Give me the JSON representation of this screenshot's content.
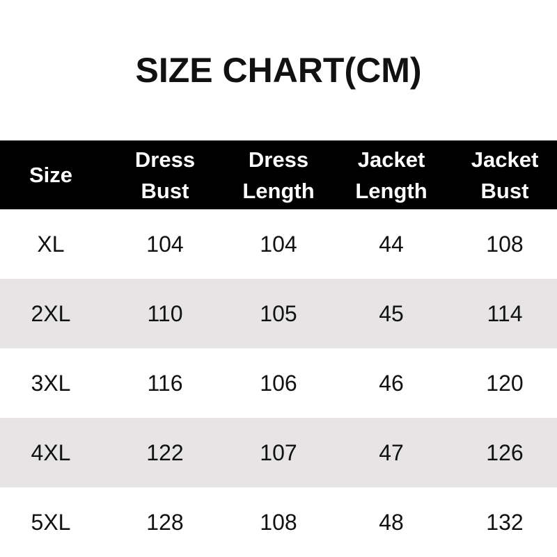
{
  "title": "SIZE CHART(CM)",
  "headers": [
    {
      "line1": "Size",
      "line2": ""
    },
    {
      "line1": "Dress",
      "line2": "Bust"
    },
    {
      "line1": "Dress",
      "line2": "Length"
    },
    {
      "line1": "Jacket",
      "line2": "Length"
    },
    {
      "line1": "Jacket",
      "line2": "Bust"
    }
  ],
  "rows": [
    [
      "XL",
      "104",
      "104",
      "44",
      "108"
    ],
    [
      "2XL",
      "110",
      "105",
      "45",
      "114"
    ],
    [
      "3XL",
      "116",
      "106",
      "46",
      "120"
    ],
    [
      "4XL",
      "122",
      "107",
      "47",
      "126"
    ],
    [
      "5XL",
      "128",
      "108",
      "48",
      "132"
    ]
  ],
  "colors": {
    "header_bg": "#000000",
    "alt_row_bg": "#e6e4e5"
  }
}
